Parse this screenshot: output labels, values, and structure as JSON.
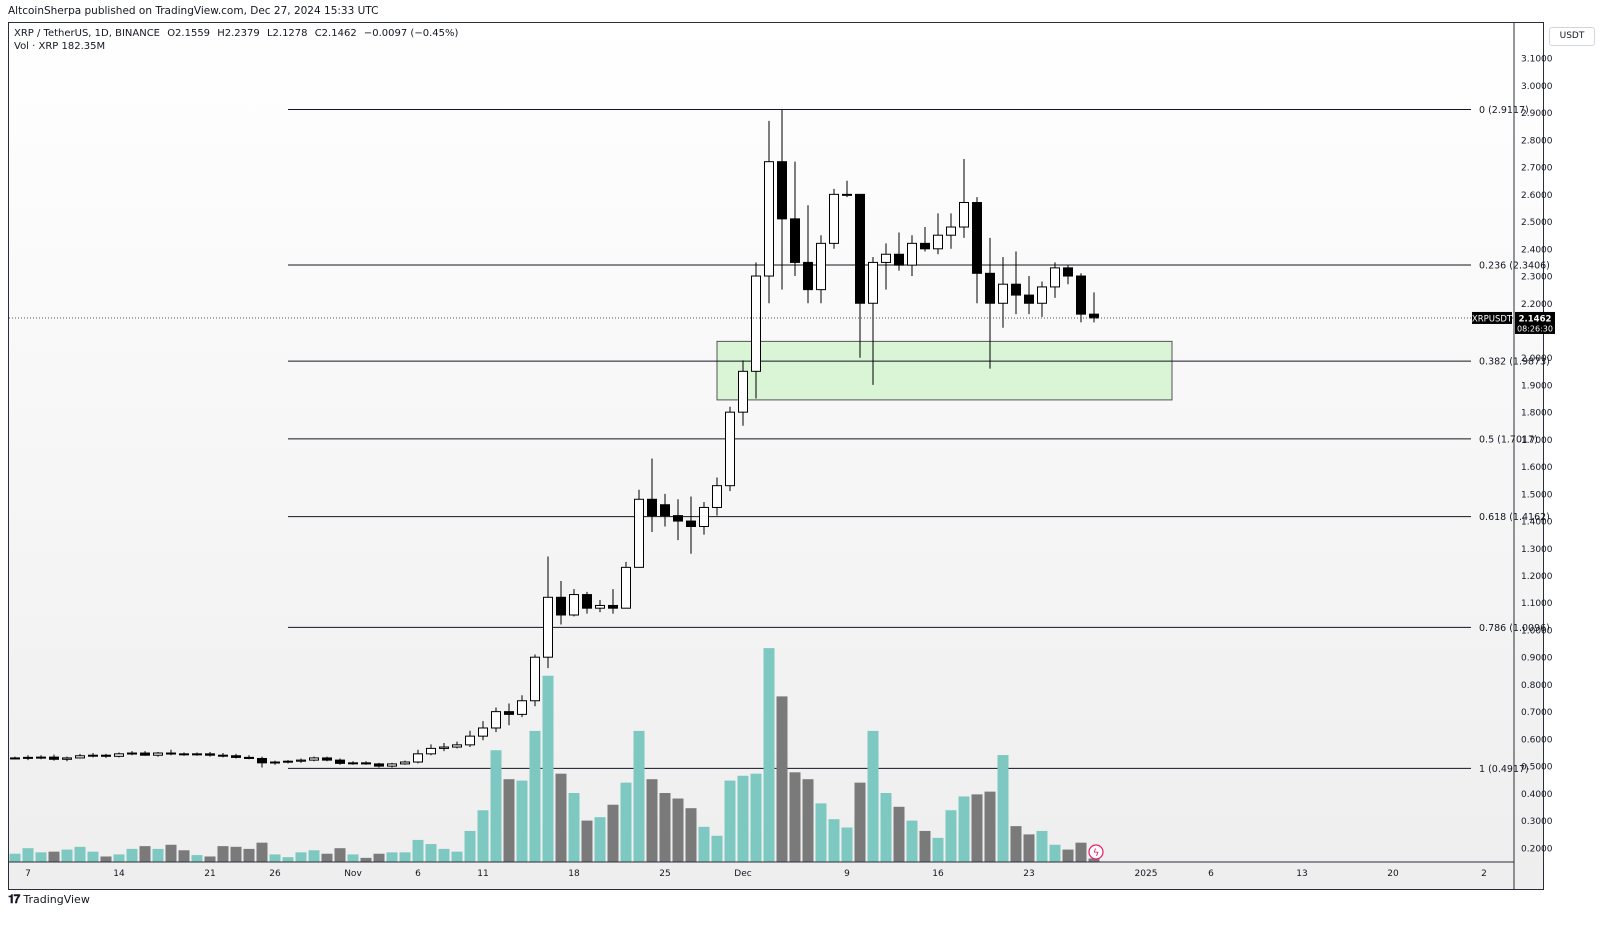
{
  "header": {
    "publisher": "AltcoinSherpa published on TradingView.com, Dec 27, 2024 15:33 UTC"
  },
  "legend": {
    "symbol": "XRP / TetherUS, 1D, BINANCE",
    "open": "O2.1559",
    "high": "H2.2379",
    "low": "L2.1278",
    "close": "C2.1462",
    "change": "−0.0097 (−0.45%)",
    "volume": "Vol · XRP  182.35M"
  },
  "currency": "USDT",
  "price_tag": {
    "symbol": "XRPUSDT",
    "price": "2.1462",
    "countdown": "08:26:30"
  },
  "footer": {
    "brand": "TradingView",
    "icon": "tradingview-logo-icon"
  },
  "colors": {
    "up_candle": "#ffffff",
    "down_candle": "#000000",
    "up_volume": "#7ec8c2",
    "down_volume": "#7a7a7a",
    "zone_fill": "#d9f5d6",
    "zone_stroke": "#555555",
    "fib_line": "#131722"
  },
  "chart_data": {
    "type": "candlestick",
    "symbol": "XRPUSDT",
    "interval": "1D",
    "yaxis": {
      "unit": "USDT",
      "ticks": [
        "3.1000",
        "3.0000",
        "2.9000",
        "2.8000",
        "2.7000",
        "2.6000",
        "2.5000",
        "2.4000",
        "2.3000",
        "2.2000",
        "2.0000",
        "1.9000",
        "1.8000",
        "1.7000",
        "1.6000",
        "1.5000",
        "1.4000",
        "1.3000",
        "1.2000",
        "1.1000",
        "1.0000",
        "0.9000",
        "0.8000",
        "0.7000",
        "0.6000",
        "0.5000",
        "0.4000",
        "0.3000",
        "0.2000"
      ]
    },
    "xaxis": {
      "ticks": [
        {
          "label": "7",
          "date": "2024-10-07"
        },
        {
          "label": "14",
          "date": "2024-10-14"
        },
        {
          "label": "21",
          "date": "2024-10-21"
        },
        {
          "label": "26",
          "date": "2024-10-26"
        },
        {
          "label": "Nov",
          "date": "2024-11-01"
        },
        {
          "label": "6",
          "date": "2024-11-06"
        },
        {
          "label": "11",
          "date": "2024-11-11"
        },
        {
          "label": "18",
          "date": "2024-11-18"
        },
        {
          "label": "25",
          "date": "2024-11-25"
        },
        {
          "label": "Dec",
          "date": "2024-12-01"
        },
        {
          "label": "9",
          "date": "2024-12-09"
        },
        {
          "label": "16",
          "date": "2024-12-16"
        },
        {
          "label": "23",
          "date": "2024-12-23"
        },
        {
          "label": "2025",
          "date": "2025-01-01"
        },
        {
          "label": "6",
          "date": "2025-01-06"
        },
        {
          "label": "13",
          "date": "2025-01-13"
        },
        {
          "label": "20",
          "date": "2025-01-20"
        },
        {
          "label": "2",
          "date": "2025-01-27"
        }
      ]
    },
    "fib_levels": [
      {
        "label": "0 (2.9117)",
        "value": 2.9117
      },
      {
        "label": "0.236 (2.3406)",
        "value": 2.3406
      },
      {
        "label": "0.382 (1.9873)",
        "value": 1.9873
      },
      {
        "label": "0.5 (1.7017)",
        "value": 1.7017
      },
      {
        "label": "0.618 (1.4162)",
        "value": 1.4162
      },
      {
        "label": "0.786 (1.0096)",
        "value": 1.0096
      },
      {
        "label": "1 (0.4917)",
        "value": 0.4917
      }
    ],
    "fib_start_date": "2024-10-27",
    "fib_end_date": "2025-01-26",
    "zone": {
      "x0": "2024-11-29",
      "x1": "2025-01-03",
      "y0": 1.845,
      "y1": 2.06
    },
    "candles": [
      {
        "d": "2024-10-06",
        "o": 0.53,
        "h": 0.535,
        "l": 0.525,
        "c": 0.53,
        "v": 12
      },
      {
        "d": "2024-10-07",
        "o": 0.53,
        "h": 0.54,
        "l": 0.522,
        "c": 0.532,
        "v": 20
      },
      {
        "d": "2024-10-08",
        "o": 0.532,
        "h": 0.54,
        "l": 0.525,
        "c": 0.533,
        "v": 14
      },
      {
        "d": "2024-10-09",
        "o": 0.533,
        "h": 0.542,
        "l": 0.52,
        "c": 0.525,
        "v": 15
      },
      {
        "d": "2024-10-10",
        "o": 0.525,
        "h": 0.535,
        "l": 0.518,
        "c": 0.53,
        "v": 18
      },
      {
        "d": "2024-10-11",
        "o": 0.53,
        "h": 0.545,
        "l": 0.528,
        "c": 0.538,
        "v": 22
      },
      {
        "d": "2024-10-12",
        "o": 0.538,
        "h": 0.548,
        "l": 0.532,
        "c": 0.54,
        "v": 15
      },
      {
        "d": "2024-10-13",
        "o": 0.54,
        "h": 0.545,
        "l": 0.53,
        "c": 0.536,
        "v": 8
      },
      {
        "d": "2024-10-14",
        "o": 0.536,
        "h": 0.55,
        "l": 0.532,
        "c": 0.545,
        "v": 11
      },
      {
        "d": "2024-10-15",
        "o": 0.545,
        "h": 0.555,
        "l": 0.54,
        "c": 0.548,
        "v": 19
      },
      {
        "d": "2024-10-16",
        "o": 0.548,
        "h": 0.555,
        "l": 0.538,
        "c": 0.54,
        "v": 23
      },
      {
        "d": "2024-10-17",
        "o": 0.54,
        "h": 0.552,
        "l": 0.535,
        "c": 0.548,
        "v": 19
      },
      {
        "d": "2024-10-18",
        "o": 0.548,
        "h": 0.56,
        "l": 0.54,
        "c": 0.545,
        "v": 25
      },
      {
        "d": "2024-10-19",
        "o": 0.545,
        "h": 0.55,
        "l": 0.538,
        "c": 0.542,
        "v": 17
      },
      {
        "d": "2024-10-20",
        "o": 0.542,
        "h": 0.55,
        "l": 0.538,
        "c": 0.545,
        "v": 10
      },
      {
        "d": "2024-10-21",
        "o": 0.545,
        "h": 0.552,
        "l": 0.535,
        "c": 0.54,
        "v": 8
      },
      {
        "d": "2024-10-22",
        "o": 0.54,
        "h": 0.548,
        "l": 0.532,
        "c": 0.538,
        "v": 23
      },
      {
        "d": "2024-10-23",
        "o": 0.538,
        "h": 0.545,
        "l": 0.528,
        "c": 0.532,
        "v": 22
      },
      {
        "d": "2024-10-24",
        "o": 0.532,
        "h": 0.54,
        "l": 0.525,
        "c": 0.528,
        "v": 19
      },
      {
        "d": "2024-10-25",
        "o": 0.528,
        "h": 0.535,
        "l": 0.495,
        "c": 0.512,
        "v": 28
      },
      {
        "d": "2024-10-26",
        "o": 0.512,
        "h": 0.52,
        "l": 0.505,
        "c": 0.515,
        "v": 11
      },
      {
        "d": "2024-10-27",
        "o": 0.515,
        "h": 0.522,
        "l": 0.51,
        "c": 0.518,
        "v": 7
      },
      {
        "d": "2024-10-28",
        "o": 0.518,
        "h": 0.528,
        "l": 0.512,
        "c": 0.522,
        "v": 14
      },
      {
        "d": "2024-10-29",
        "o": 0.522,
        "h": 0.535,
        "l": 0.518,
        "c": 0.53,
        "v": 17
      },
      {
        "d": "2024-10-30",
        "o": 0.53,
        "h": 0.535,
        "l": 0.518,
        "c": 0.522,
        "v": 12
      },
      {
        "d": "2024-10-31",
        "o": 0.522,
        "h": 0.528,
        "l": 0.505,
        "c": 0.51,
        "v": 20
      },
      {
        "d": "2024-11-01",
        "o": 0.51,
        "h": 0.518,
        "l": 0.505,
        "c": 0.512,
        "v": 11
      },
      {
        "d": "2024-11-02",
        "o": 0.512,
        "h": 0.518,
        "l": 0.505,
        "c": 0.508,
        "v": 6
      },
      {
        "d": "2024-11-03",
        "o": 0.508,
        "h": 0.512,
        "l": 0.495,
        "c": 0.5,
        "v": 12
      },
      {
        "d": "2024-11-04",
        "o": 0.5,
        "h": 0.512,
        "l": 0.495,
        "c": 0.508,
        "v": 14
      },
      {
        "d": "2024-11-05",
        "o": 0.508,
        "h": 0.52,
        "l": 0.505,
        "c": 0.515,
        "v": 14
      },
      {
        "d": "2024-11-06",
        "o": 0.515,
        "h": 0.56,
        "l": 0.51,
        "c": 0.545,
        "v": 32
      },
      {
        "d": "2024-11-07",
        "o": 0.545,
        "h": 0.58,
        "l": 0.54,
        "c": 0.565,
        "v": 26
      },
      {
        "d": "2024-11-08",
        "o": 0.565,
        "h": 0.585,
        "l": 0.555,
        "c": 0.57,
        "v": 19
      },
      {
        "d": "2024-11-09",
        "o": 0.57,
        "h": 0.59,
        "l": 0.565,
        "c": 0.578,
        "v": 15
      },
      {
        "d": "2024-11-10",
        "o": 0.578,
        "h": 0.63,
        "l": 0.57,
        "c": 0.61,
        "v": 45
      },
      {
        "d": "2024-11-11",
        "o": 0.61,
        "h": 0.665,
        "l": 0.595,
        "c": 0.64,
        "v": 75
      },
      {
        "d": "2024-11-12",
        "o": 0.64,
        "h": 0.715,
        "l": 0.625,
        "c": 0.7,
        "v": 162
      },
      {
        "d": "2024-11-13",
        "o": 0.7,
        "h": 0.73,
        "l": 0.65,
        "c": 0.69,
        "v": 120
      },
      {
        "d": "2024-11-14",
        "o": 0.69,
        "h": 0.76,
        "l": 0.68,
        "c": 0.74,
        "v": 118
      },
      {
        "d": "2024-11-15",
        "o": 0.74,
        "h": 0.91,
        "l": 0.72,
        "c": 0.9,
        "v": 190
      },
      {
        "d": "2024-11-16",
        "o": 0.9,
        "h": 1.27,
        "l": 0.86,
        "c": 1.12,
        "v": 270
      },
      {
        "d": "2024-11-17",
        "o": 1.12,
        "h": 1.18,
        "l": 1.02,
        "c": 1.055,
        "v": 128
      },
      {
        "d": "2024-11-18",
        "o": 1.055,
        "h": 1.15,
        "l": 1.05,
        "c": 1.13,
        "v": 100
      },
      {
        "d": "2024-11-19",
        "o": 1.13,
        "h": 1.14,
        "l": 1.06,
        "c": 1.08,
        "v": 60
      },
      {
        "d": "2024-11-20",
        "o": 1.08,
        "h": 1.11,
        "l": 1.065,
        "c": 1.09,
        "v": 65
      },
      {
        "d": "2024-11-21",
        "o": 1.09,
        "h": 1.15,
        "l": 1.06,
        "c": 1.08,
        "v": 83
      },
      {
        "d": "2024-11-22",
        "o": 1.08,
        "h": 1.25,
        "l": 1.08,
        "c": 1.23,
        "v": 115
      },
      {
        "d": "2024-11-23",
        "o": 1.23,
        "h": 1.515,
        "l": 1.23,
        "c": 1.48,
        "v": 190
      },
      {
        "d": "2024-11-24",
        "o": 1.48,
        "h": 1.63,
        "l": 1.36,
        "c": 1.42,
        "v": 120
      },
      {
        "d": "2024-11-25",
        "o": 1.46,
        "h": 1.5,
        "l": 1.38,
        "c": 1.42,
        "v": 100
      },
      {
        "d": "2024-11-26",
        "o": 1.42,
        "h": 1.48,
        "l": 1.33,
        "c": 1.4,
        "v": 92
      },
      {
        "d": "2024-11-27",
        "o": 1.4,
        "h": 1.49,
        "l": 1.28,
        "c": 1.38,
        "v": 78
      },
      {
        "d": "2024-11-28",
        "o": 1.38,
        "h": 1.47,
        "l": 1.35,
        "c": 1.45,
        "v": 51
      },
      {
        "d": "2024-11-29",
        "o": 1.45,
        "h": 1.56,
        "l": 1.42,
        "c": 1.53,
        "v": 38
      },
      {
        "d": "2024-11-30",
        "o": 1.53,
        "h": 1.82,
        "l": 1.51,
        "c": 1.8,
        "v": 118
      },
      {
        "d": "2024-12-01",
        "o": 1.8,
        "h": 1.99,
        "l": 1.75,
        "c": 1.95,
        "v": 125
      },
      {
        "d": "2024-12-02",
        "o": 1.95,
        "h": 2.35,
        "l": 1.85,
        "c": 2.3,
        "v": 128
      },
      {
        "d": "2024-12-03",
        "o": 2.3,
        "h": 2.87,
        "l": 2.2,
        "c": 2.72,
        "v": 310
      },
      {
        "d": "2024-12-04",
        "o": 2.72,
        "h": 2.91,
        "l": 2.25,
        "c": 2.51,
        "v": 240
      },
      {
        "d": "2024-12-05",
        "o": 2.51,
        "h": 2.72,
        "l": 2.3,
        "c": 2.35,
        "v": 130
      },
      {
        "d": "2024-12-06",
        "o": 2.35,
        "h": 2.56,
        "l": 2.2,
        "c": 2.25,
        "v": 120
      },
      {
        "d": "2024-12-07",
        "o": 2.25,
        "h": 2.45,
        "l": 2.2,
        "c": 2.42,
        "v": 85
      },
      {
        "d": "2024-12-08",
        "o": 2.42,
        "h": 2.62,
        "l": 2.4,
        "c": 2.6,
        "v": 62
      },
      {
        "d": "2024-12-09",
        "o": 2.6,
        "h": 2.65,
        "l": 2.59,
        "c": 2.6,
        "v": 50
      },
      {
        "d": "2024-12-10",
        "o": 2.6,
        "h": 2.6,
        "l": 2.0,
        "c": 2.2,
        "v": 115
      },
      {
        "d": "2024-12-11",
        "o": 2.2,
        "h": 2.37,
        "l": 1.9,
        "c": 2.35,
        "v": 190
      },
      {
        "d": "2024-12-12",
        "o": 2.35,
        "h": 2.42,
        "l": 2.25,
        "c": 2.38,
        "v": 100
      },
      {
        "d": "2024-12-13",
        "o": 2.38,
        "h": 2.46,
        "l": 2.32,
        "c": 2.34,
        "v": 80
      },
      {
        "d": "2024-12-14",
        "o": 2.34,
        "h": 2.45,
        "l": 2.3,
        "c": 2.42,
        "v": 60
      },
      {
        "d": "2024-12-15",
        "o": 2.42,
        "h": 2.48,
        "l": 2.39,
        "c": 2.4,
        "v": 45
      },
      {
        "d": "2024-12-16",
        "o": 2.4,
        "h": 2.53,
        "l": 2.38,
        "c": 2.45,
        "v": 35
      },
      {
        "d": "2024-12-17",
        "o": 2.45,
        "h": 2.53,
        "l": 2.4,
        "c": 2.48,
        "v": 75
      },
      {
        "d": "2024-12-18",
        "o": 2.48,
        "h": 2.73,
        "l": 2.44,
        "c": 2.57,
        "v": 95
      },
      {
        "d": "2024-12-19",
        "o": 2.57,
        "h": 2.59,
        "l": 2.2,
        "c": 2.31,
        "v": 98
      },
      {
        "d": "2024-12-20",
        "o": 2.31,
        "h": 2.44,
        "l": 1.96,
        "c": 2.2,
        "v": 102
      },
      {
        "d": "2024-12-21",
        "o": 2.2,
        "h": 2.37,
        "l": 2.11,
        "c": 2.27,
        "v": 155
      },
      {
        "d": "2024-12-22",
        "o": 2.27,
        "h": 2.39,
        "l": 2.16,
        "c": 2.23,
        "v": 52
      },
      {
        "d": "2024-12-23",
        "o": 2.23,
        "h": 2.3,
        "l": 2.16,
        "c": 2.2,
        "v": 40
      },
      {
        "d": "2024-12-24",
        "o": 2.2,
        "h": 2.28,
        "l": 2.15,
        "c": 2.26,
        "v": 45
      },
      {
        "d": "2024-12-25",
        "o": 2.26,
        "h": 2.35,
        "l": 2.22,
        "c": 2.33,
        "v": 25
      },
      {
        "d": "2024-12-26",
        "o": 2.33,
        "h": 2.34,
        "l": 2.27,
        "c": 2.3,
        "v": 18
      },
      {
        "d": "2024-12-27",
        "o": 2.3,
        "h": 2.31,
        "l": 2.13,
        "c": 2.16,
        "v": 28
      },
      {
        "d": "2024-12-28",
        "o": 2.16,
        "h": 2.24,
        "l": 2.13,
        "c": 2.146,
        "v": 5
      }
    ]
  }
}
